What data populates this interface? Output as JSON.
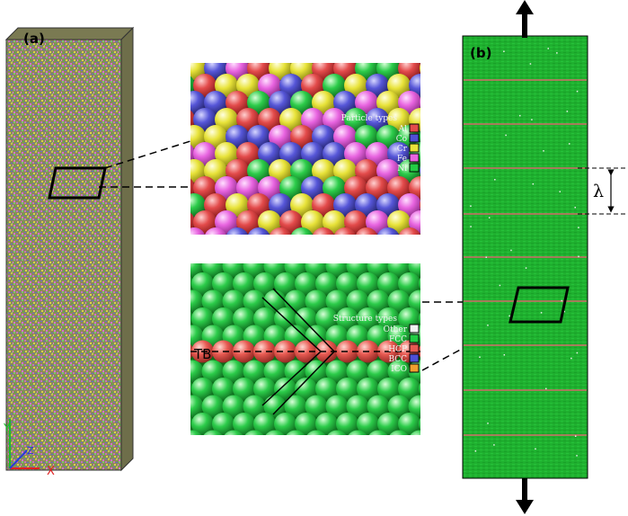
{
  "panels": {
    "a": {
      "label": "(a)"
    },
    "b": {
      "label": "(b)"
    }
  },
  "axes_triad": {
    "x": "X",
    "y": "Y",
    "z": "Z"
  },
  "particle_legend": {
    "title": "Particle types",
    "items": [
      {
        "name": "Al",
        "color": "#e34b4b"
      },
      {
        "name": "Co",
        "color": "#4f4fd6"
      },
      {
        "name": "Cr",
        "color": "#e8e33a"
      },
      {
        "name": "Fe",
        "color": "#e864e0"
      },
      {
        "name": "Ni",
        "color": "#22cc44"
      }
    ]
  },
  "structure_legend": {
    "title": "Structure types",
    "items": [
      {
        "name": "Other",
        "color": "#f2f2f2"
      },
      {
        "name": "FCC",
        "color": "#22cc44"
      },
      {
        "name": "HCP",
        "color": "#e85a52"
      },
      {
        "name": "BCC",
        "color": "#4f4fd6"
      },
      {
        "name": "ICO",
        "color": "#f0a030"
      }
    ]
  },
  "tb_label": "TB",
  "spacing_label": "λ",
  "colors": {
    "atom_red": "#e34b4b",
    "atom_blue": "#4f4fd6",
    "atom_yellow": "#e8e33a",
    "atom_magenta": "#e864e0",
    "atom_green": "#22cc44",
    "fcc_green": "#22bb33",
    "hcp_red": "#e85a52",
    "twin_line": "#d26a6a"
  }
}
